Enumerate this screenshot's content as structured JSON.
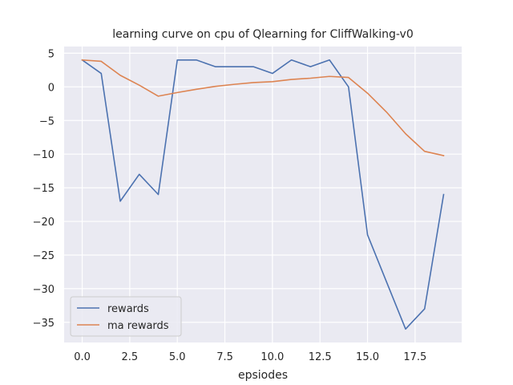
{
  "chart_data": {
    "type": "line",
    "title": "learning curve on cpu of Qlearning for CliffWalking-v0",
    "xlabel": "epsiodes",
    "ylabel": "",
    "xlim": [
      -0.95,
      19.95
    ],
    "ylim": [
      -38,
      6
    ],
    "xticks": [
      0,
      2.5,
      5,
      7.5,
      10,
      12.5,
      15,
      17.5
    ],
    "xtick_labels": [
      "0.0",
      "2.5",
      "5.0",
      "7.5",
      "10.0",
      "12.5",
      "15.0",
      "17.5"
    ],
    "yticks": [
      5,
      0,
      -5,
      -10,
      -15,
      -20,
      -25,
      -30,
      -35
    ],
    "ytick_labels": [
      "5",
      "0",
      "−5",
      "−10",
      "−15",
      "−20",
      "−25",
      "−30",
      "−35"
    ],
    "grid": true,
    "legend_position": "lower-left",
    "x": [
      0,
      1,
      2,
      3,
      4,
      5,
      6,
      7,
      8,
      9,
      10,
      11,
      12,
      13,
      14,
      15,
      16,
      17,
      18,
      19
    ],
    "series": [
      {
        "name": "rewards",
        "color": "#4c72b0",
        "values": [
          4,
          2,
          -17,
          -13,
          -16,
          4,
          4,
          3,
          3,
          3,
          2,
          4,
          3,
          4,
          0,
          -22,
          -29,
          -36,
          -33,
          -16
        ]
      },
      {
        "name": "ma rewards",
        "color": "#dd8452",
        "values": [
          4,
          3.8,
          1.72,
          0.25,
          -1.38,
          -0.84,
          -0.36,
          0.08,
          0.38,
          0.64,
          0.78,
          1.1,
          1.29,
          1.56,
          1.4,
          -0.94,
          -3.75,
          -6.97,
          -9.58,
          -10.22
        ]
      }
    ]
  }
}
